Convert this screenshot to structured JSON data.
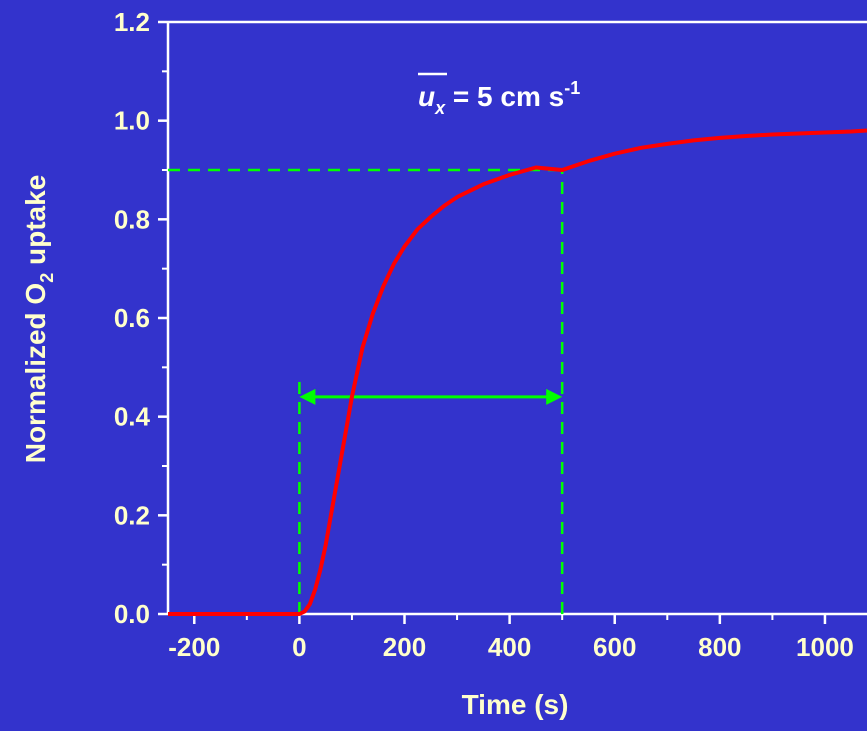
{
  "colors": {
    "background": "#3333cc",
    "axis": "#ffffff",
    "text": "#ffffcc",
    "curve": "#ff0000",
    "guides": "#00ff00"
  },
  "chart_data": {
    "type": "line",
    "title": "",
    "xlabel": "Time  (s)",
    "ylabel_parts": [
      "Normalized O",
      "2",
      " uptake"
    ],
    "xlim": [
      -250,
      1080
    ],
    "ylim": [
      0,
      1.2
    ],
    "x_ticks": [
      -200,
      0,
      200,
      400,
      600,
      800,
      1000
    ],
    "x_tick_labels": [
      "-200",
      "0",
      "200",
      "400",
      "600",
      "800",
      "1000"
    ],
    "y_ticks": [
      0,
      0.2,
      0.4,
      0.6,
      0.8,
      1.0,
      1.2
    ],
    "y_tick_labels": [
      "0.0",
      "0.2",
      "0.4",
      "0.6",
      "0.8",
      "1.0",
      "1.2"
    ],
    "grid": false,
    "annotation_parts": [
      "u",
      "x",
      " = 5 cm s",
      "-1"
    ],
    "series": [
      {
        "x": [
          -250,
          -200,
          -100,
          0,
          10,
          20,
          30,
          40,
          50,
          60,
          70,
          80,
          90,
          100,
          120,
          140,
          160,
          180,
          200,
          225,
          250,
          275,
          300,
          350,
          400,
          450,
          500,
          550,
          600,
          650,
          700,
          750,
          800,
          850,
          900,
          950,
          1000,
          1050,
          1080
        ],
        "y": [
          0,
          0,
          0,
          0,
          0.005,
          0.02,
          0.05,
          0.09,
          0.14,
          0.2,
          0.26,
          0.32,
          0.38,
          0.44,
          0.54,
          0.61,
          0.665,
          0.71,
          0.745,
          0.78,
          0.805,
          0.827,
          0.845,
          0.871,
          0.89,
          0.905,
          0.9,
          0.918,
          0.933,
          0.945,
          0.953,
          0.96,
          0.965,
          0.969,
          0.972,
          0.974,
          0.976,
          0.978,
          0.98
        ]
      }
    ],
    "guides": {
      "horizontal_y": 0.9,
      "horizontal_x_to": 500,
      "vertical_x": [
        0,
        500
      ],
      "vertical_y_to": [
        0.48,
        0.9
      ],
      "arrow_from": 0,
      "arrow_to": 500,
      "arrow_y": 0.44
    }
  }
}
